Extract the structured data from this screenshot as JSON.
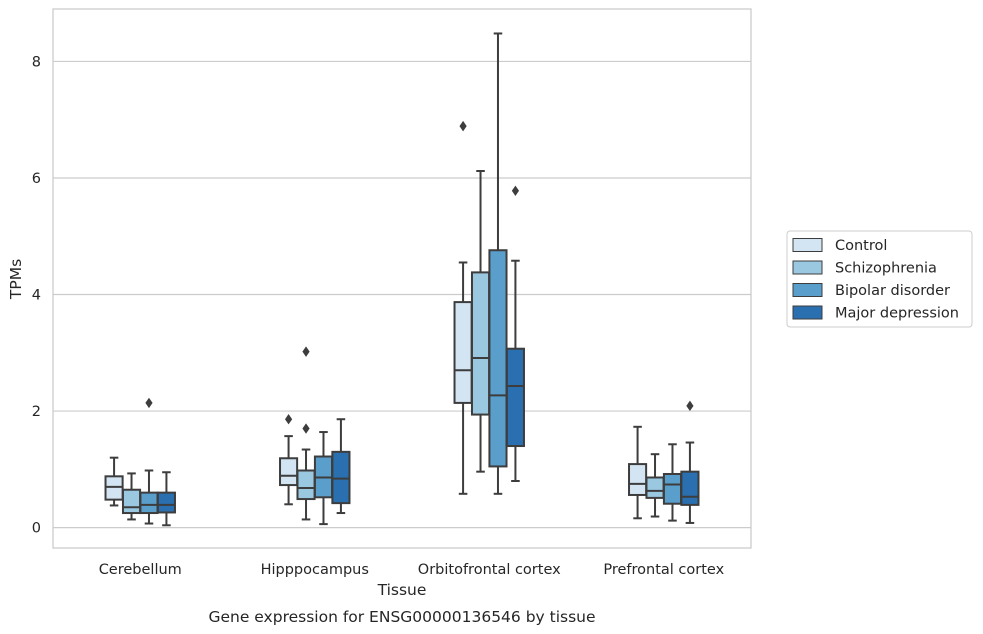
{
  "chart_data": {
    "type": "box",
    "xlabel": "Tissue",
    "ylabel": "TPMs",
    "caption": "Gene expression for ENSG00000136546 by tissue",
    "ylim": [
      -0.35,
      8.9
    ],
    "yticks": [
      0,
      2,
      4,
      6,
      8
    ],
    "grid": "horizontal",
    "legend_position": "right",
    "categories": [
      "Cerebellum",
      "Hipppocampus",
      "Orbitofrontal cortex",
      "Prefrontal cortex"
    ],
    "series": [
      {
        "name": "Control",
        "color": "#d3e4f3",
        "boxes": [
          {
            "whisker_low": 0.38,
            "q1": 0.48,
            "median": 0.7,
            "q3": 0.88,
            "whisker_high": 1.2,
            "outliers": []
          },
          {
            "whisker_low": 0.4,
            "q1": 0.73,
            "median": 0.89,
            "q3": 1.19,
            "whisker_high": 1.57,
            "outliers": [
              1.86
            ]
          },
          {
            "whisker_low": 0.58,
            "q1": 2.14,
            "median": 2.7,
            "q3": 3.87,
            "whisker_high": 4.55,
            "outliers": [
              6.89
            ]
          },
          {
            "whisker_low": 0.16,
            "q1": 0.56,
            "median": 0.75,
            "q3": 1.09,
            "whisker_high": 1.73,
            "outliers": []
          }
        ]
      },
      {
        "name": "Schizophrenia",
        "color": "#9ac8e0",
        "boxes": [
          {
            "whisker_low": 0.14,
            "q1": 0.25,
            "median": 0.35,
            "q3": 0.65,
            "whisker_high": 0.93,
            "outliers": []
          },
          {
            "whisker_low": 0.14,
            "q1": 0.49,
            "median": 0.68,
            "q3": 0.98,
            "whisker_high": 1.34,
            "outliers": [
              1.7,
              3.02
            ]
          },
          {
            "whisker_low": 0.96,
            "q1": 1.94,
            "median": 2.91,
            "q3": 4.38,
            "whisker_high": 6.12,
            "outliers": []
          },
          {
            "whisker_low": 0.19,
            "q1": 0.51,
            "median": 0.63,
            "q3": 0.86,
            "whisker_high": 1.26,
            "outliers": []
          }
        ]
      },
      {
        "name": "Bipolar disorder",
        "color": "#5a9ecc",
        "boxes": [
          {
            "whisker_low": 0.07,
            "q1": 0.25,
            "median": 0.39,
            "q3": 0.6,
            "whisker_high": 0.98,
            "outliers": [
              2.14
            ]
          },
          {
            "whisker_low": 0.06,
            "q1": 0.52,
            "median": 0.86,
            "q3": 1.22,
            "whisker_high": 1.64,
            "outliers": []
          },
          {
            "whisker_low": 0.58,
            "q1": 1.05,
            "median": 2.27,
            "q3": 4.76,
            "whisker_high": 8.48,
            "outliers": []
          },
          {
            "whisker_low": 0.12,
            "q1": 0.41,
            "median": 0.74,
            "q3": 0.92,
            "whisker_high": 1.43,
            "outliers": []
          }
        ]
      },
      {
        "name": "Major depression",
        "color": "#2a6fb0",
        "boxes": [
          {
            "whisker_low": 0.04,
            "q1": 0.26,
            "median": 0.39,
            "q3": 0.6,
            "whisker_high": 0.95,
            "outliers": []
          },
          {
            "whisker_low": 0.25,
            "q1": 0.42,
            "median": 0.84,
            "q3": 1.3,
            "whisker_high": 1.86,
            "outliers": []
          },
          {
            "whisker_low": 0.8,
            "q1": 1.4,
            "median": 2.43,
            "q3": 3.07,
            "whisker_high": 4.58,
            "outliers": [
              5.78
            ]
          },
          {
            "whisker_low": 0.08,
            "q1": 0.39,
            "median": 0.53,
            "q3": 0.96,
            "whisker_high": 1.46,
            "outliers": [
              2.09
            ]
          }
        ]
      }
    ]
  }
}
